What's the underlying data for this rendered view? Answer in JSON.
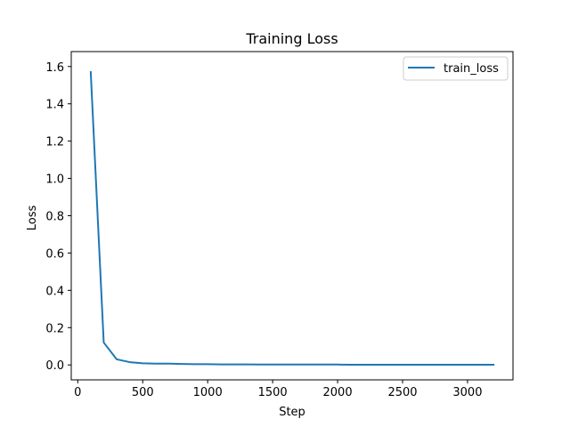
{
  "chart_data": {
    "type": "line",
    "title": "Training Loss",
    "xlabel": "Step",
    "ylabel": "Loss",
    "xlim": [
      -50,
      3350
    ],
    "ylim": [
      -0.08,
      1.68
    ],
    "xticks": [
      0,
      500,
      1000,
      1500,
      2000,
      2500,
      3000
    ],
    "yticks": [
      0.0,
      0.2,
      0.4,
      0.6,
      0.8,
      1.0,
      1.2,
      1.4,
      1.6
    ],
    "grid": false,
    "legend_position": "top-right",
    "colors": {
      "series": "#1f77b4"
    },
    "series": [
      {
        "name": "train_loss",
        "x": [
          100,
          200,
          300,
          400,
          500,
          600,
          700,
          800,
          900,
          1000,
          1100,
          1200,
          1300,
          1400,
          1500,
          1600,
          1700,
          1800,
          1900,
          2000,
          2100,
          2200,
          2300,
          2400,
          2500,
          2600,
          2700,
          2800,
          2900,
          3000,
          3100,
          3200
        ],
        "y": [
          1.57,
          0.12,
          0.03,
          0.015,
          0.009,
          0.007,
          0.007,
          0.005,
          0.004,
          0.004,
          0.003,
          0.003,
          0.003,
          0.002,
          0.002,
          0.002,
          0.002,
          0.002,
          0.002,
          0.002,
          0.001,
          0.001,
          0.001,
          0.001,
          0.001,
          0.001,
          0.001,
          0.001,
          0.001,
          0.001,
          0.001,
          0.001
        ]
      }
    ]
  }
}
